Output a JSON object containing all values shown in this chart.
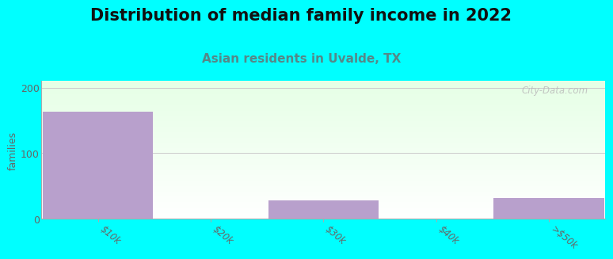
{
  "title": "Distribution of median family income in 2022",
  "subtitle": "Asian residents in Uvalde, TX",
  "ylabel": "families",
  "categories": [
    "$10k",
    "$20k",
    "$30k",
    "$40k",
    ">$50k"
  ],
  "values": [
    163,
    0,
    28,
    0,
    32
  ],
  "bar_color": "#b8a0cc",
  "ylim": [
    0,
    210
  ],
  "yticks": [
    0,
    100,
    200
  ],
  "background_outer": "#00FFFF",
  "gradient_top": "#e8f5e8",
  "gradient_bottom": "#f8fff8",
  "grid_color": "#cccccc",
  "title_fontsize": 15,
  "subtitle_fontsize": 11,
  "subtitle_color": "#558888",
  "watermark": "City-Data.com",
  "tick_label_color": "#666666"
}
